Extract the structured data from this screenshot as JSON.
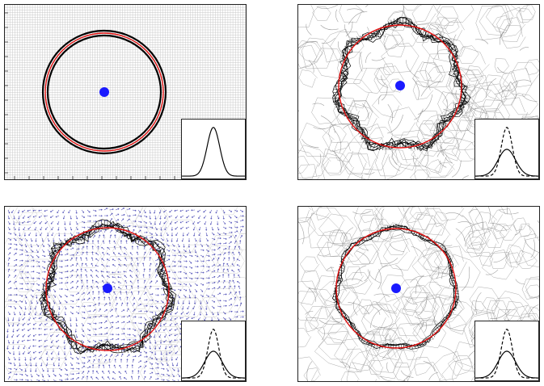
{
  "figure": {
    "panels": [
      {
        "id": "grid-regular",
        "background": "regular-grid",
        "inset_curves": [
          "solid"
        ]
      },
      {
        "id": "mesh-deformed",
        "background": "cellular-mesh",
        "inset_curves": [
          "solid",
          "dashed"
        ]
      },
      {
        "id": "vector-field",
        "background": "vector-field",
        "inset_curves": [
          "solid",
          "dashed"
        ]
      },
      {
        "id": "mesh-refined",
        "background": "cellular-mesh",
        "inset_curves": [
          "solid",
          "dashed"
        ]
      }
    ],
    "colors": {
      "reference_circle": "#e01010",
      "contour": "#000000",
      "center_blob": "#1a1aff",
      "vectors": "#2a2aa8",
      "mesh": "#9a9a9a"
    }
  }
}
